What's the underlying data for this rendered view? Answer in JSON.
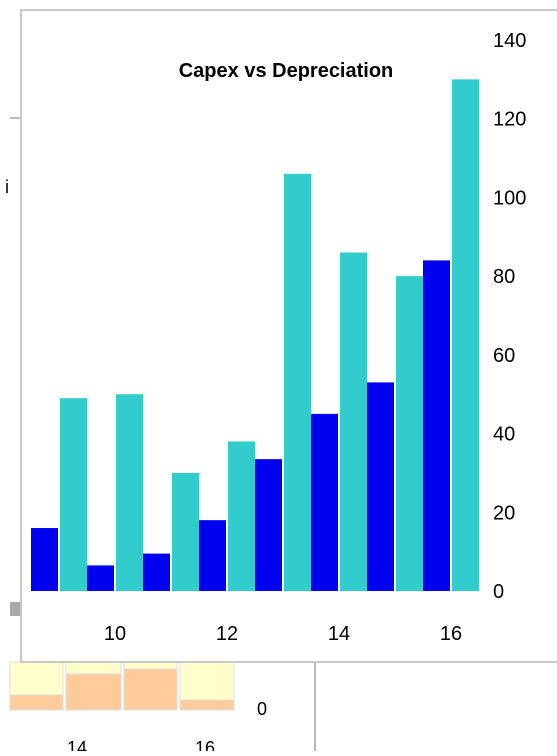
{
  "chart_data": {
    "type": "bar",
    "title": "Capex vs Depreciation",
    "xlabel": "",
    "ylabel": "",
    "x": [
      9,
      10,
      11,
      12,
      13,
      14,
      15,
      16
    ],
    "x_ticks": [
      "10",
      "12",
      "14",
      "16"
    ],
    "y_ticks": [
      "0",
      "20",
      "40",
      "60",
      "80",
      "100",
      "120",
      "140"
    ],
    "ylim": [
      0,
      140
    ],
    "y_axis_side": "right",
    "grid": false,
    "legend": "none",
    "series": [
      {
        "color": "#0000ee",
        "values": [
          16,
          6.5,
          9.5,
          18,
          33.5,
          45,
          53,
          84
        ]
      },
      {
        "color": "#33cccc",
        "values": [
          49,
          50,
          30,
          38,
          106,
          86,
          80,
          130
        ]
      }
    ]
  },
  "background_chart": {
    "y_ticks": [
      "0"
    ],
    "x_ticks": [
      "14",
      "16"
    ],
    "partial_label": "i",
    "colors": {
      "bar_light": "#ffffcc",
      "bar_dark": "#ffcc99"
    }
  }
}
